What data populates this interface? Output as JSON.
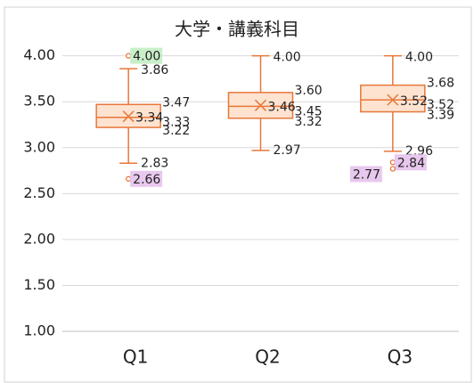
{
  "chart_data": {
    "type": "box",
    "title": "大学・講義科目",
    "categories": [
      "Q1",
      "Q2",
      "Q3"
    ],
    "color": "#e8773a",
    "fill": "#fde3d0",
    "ylim": [
      1,
      4.2
    ],
    "yticks": [
      {
        "value": 1,
        "label": "1.00"
      },
      {
        "value": 1.5,
        "label": "1.50"
      },
      {
        "value": 2,
        "label": "2.00"
      },
      {
        "value": 2.5,
        "label": "2.50"
      },
      {
        "value": 3,
        "label": "3.00"
      },
      {
        "value": 3.5,
        "label": "3.50"
      },
      {
        "value": 4,
        "label": "4.00"
      }
    ],
    "grid": true,
    "boxes": [
      {
        "min": 2.83,
        "q1": 3.22,
        "median": 3.33,
        "q3": 3.47,
        "max": 3.86,
        "mean": 3.34,
        "outliers": [
          4,
          2.66
        ],
        "value_labels": {
          "min": "2.83",
          "q1": "3.22",
          "median": "3.33",
          "q3": "3.47",
          "max": "3.86",
          "mean": "3.34",
          "outliers": [
            "4.00",
            "2.66"
          ]
        },
        "outlier_label_colors": [
          "#c9efc9",
          "#e8c8ee"
        ]
      },
      {
        "min": 2.97,
        "q1": 3.32,
        "median": 3.45,
        "q3": 3.6,
        "max": 4,
        "mean": 3.46,
        "outliers": [],
        "value_labels": {
          "min": "2.97",
          "q1": "3.32",
          "median": "3.45",
          "q3": "3.60",
          "max": "4.00",
          "mean": "3.46",
          "outliers": []
        },
        "outlier_label_colors": []
      },
      {
        "min": 2.96,
        "q1": 3.39,
        "median": 3.52,
        "q3": 3.68,
        "max": 4,
        "mean": 3.52,
        "outliers": [
          2.84,
          2.77
        ],
        "value_labels": {
          "min": "2.96",
          "q1": "3.39",
          "median": "3.52",
          "q3": "3.68",
          "max": "4.00",
          "mean": "3.52",
          "outliers": [
            "2.84",
            "2.77"
          ]
        },
        "outlier_label_colors": [
          "#e8c8ee",
          "#e8c8ee"
        ]
      }
    ]
  }
}
